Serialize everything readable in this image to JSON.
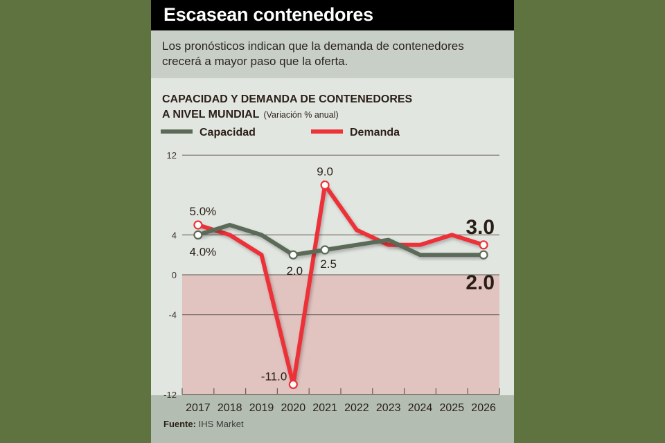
{
  "header": {
    "title": "Escasean contenedores"
  },
  "subtitle": "Los pronósticos indican que la demanda de contenedores crecerá a mayor paso que la oferta.",
  "source": {
    "label": "Fuente:",
    "value": "IHS Market"
  },
  "colors": {
    "capacidad": "#5b6b58",
    "demanda": "#ec3338",
    "negative_zone": "#e1c3c0"
  },
  "chart_data": {
    "type": "line",
    "title": "CAPACIDAD Y DEMANDA DE CONTENEDORES",
    "title_line2": "A NIVEL MUNDIAL",
    "unit_note": "(Variación % anual)",
    "xlabel": "",
    "ylabel": "",
    "x": [
      "2017",
      "2018",
      "2019",
      "2020",
      "2021",
      "2022",
      "2023",
      "2024",
      "2025",
      "2026"
    ],
    "yticks": [
      "12",
      "4",
      "0",
      "-4",
      "-12"
    ],
    "ytick_values": [
      12,
      4,
      0,
      -4,
      -12
    ],
    "ylim": [
      -12,
      12
    ],
    "grid": true,
    "legend": "top-left",
    "series": [
      {
        "name": "Capacidad",
        "values": [
          4.0,
          5.0,
          4.0,
          2.0,
          2.5,
          3.0,
          3.5,
          2.0,
          2.0,
          2.0
        ]
      },
      {
        "name": "Demanda",
        "values": [
          5.0,
          4.0,
          2.0,
          -11.0,
          9.0,
          4.5,
          3.0,
          3.0,
          4.0,
          3.0
        ]
      }
    ],
    "annotations": [
      {
        "series": "Demanda",
        "x": "2017",
        "text": "5.0%"
      },
      {
        "series": "Capacidad",
        "x": "2017",
        "text": "4.0%"
      },
      {
        "series": "Capacidad",
        "x": "2020",
        "text": "2.0"
      },
      {
        "series": "Capacidad",
        "x": "2021",
        "text": "2.5"
      },
      {
        "series": "Demanda",
        "x": "2021",
        "text": "9.0"
      },
      {
        "series": "Demanda",
        "x": "2020",
        "text": "-11.0"
      },
      {
        "series": "Demanda",
        "x": "2026",
        "text": "3.0"
      },
      {
        "series": "Capacidad",
        "x": "2026",
        "text": "2.0"
      }
    ]
  }
}
